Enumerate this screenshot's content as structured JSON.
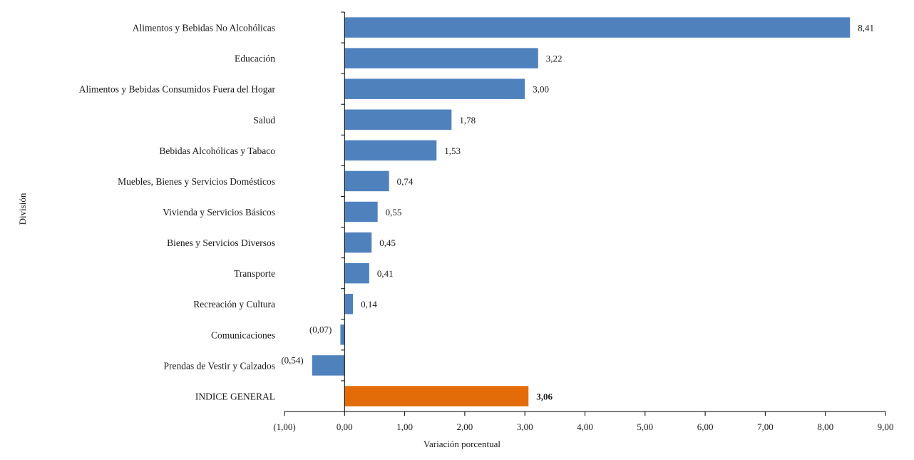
{
  "chart_data": {
    "type": "bar",
    "orientation": "horizontal",
    "title": "",
    "xlabel": "Variación porcentual",
    "ylabel": "División",
    "xlim": [
      -1,
      9
    ],
    "x_ticks": [
      -1,
      0,
      1,
      2,
      3,
      4,
      5,
      6,
      7,
      8,
      9
    ],
    "x_tick_labels": [
      "(1,00)",
      "0,00",
      "1,00",
      "2,00",
      "3,00",
      "4,00",
      "5,00",
      "6,00",
      "7,00",
      "8,00",
      "9,00"
    ],
    "grid": false,
    "legend": "none",
    "colors": {
      "bar": "#4f81bd",
      "highlight": "#e36c09"
    },
    "bars": [
      {
        "category": "Alimentos y Bebidas No Alcohólicas",
        "value": 8.41,
        "label": "8,41",
        "highlight": false
      },
      {
        "category": "Educación",
        "value": 3.22,
        "label": "3,22",
        "highlight": false
      },
      {
        "category": "Alimentos y Bebidas Consumidos Fuera del Hogar",
        "value": 3.0,
        "label": "3,00",
        "highlight": false
      },
      {
        "category": "Salud",
        "value": 1.78,
        "label": "1,78",
        "highlight": false
      },
      {
        "category": "Bebidas Alcohólicas y Tabaco",
        "value": 1.53,
        "label": "1,53",
        "highlight": false
      },
      {
        "category": "Muebles, Bienes y Servicios Domésticos",
        "value": 0.74,
        "label": "0,74",
        "highlight": false
      },
      {
        "category": "Vivienda y Servicios Básicos",
        "value": 0.55,
        "label": "0,55",
        "highlight": false
      },
      {
        "category": "Bienes y Servicios Diversos",
        "value": 0.45,
        "label": "0,45",
        "highlight": false
      },
      {
        "category": "Transporte",
        "value": 0.41,
        "label": "0,41",
        "highlight": false
      },
      {
        "category": "Recreación y Cultura",
        "value": 0.14,
        "label": "0,14",
        "highlight": false
      },
      {
        "category": "Comunicaciones",
        "value": -0.07,
        "label": "(0,07)",
        "highlight": false
      },
      {
        "category": "Prendas de Vestir y Calzados",
        "value": -0.54,
        "label": "(0,54)",
        "highlight": false
      },
      {
        "category": "INDICE GENERAL",
        "value": 3.06,
        "label": "3,06",
        "highlight": true
      }
    ]
  }
}
